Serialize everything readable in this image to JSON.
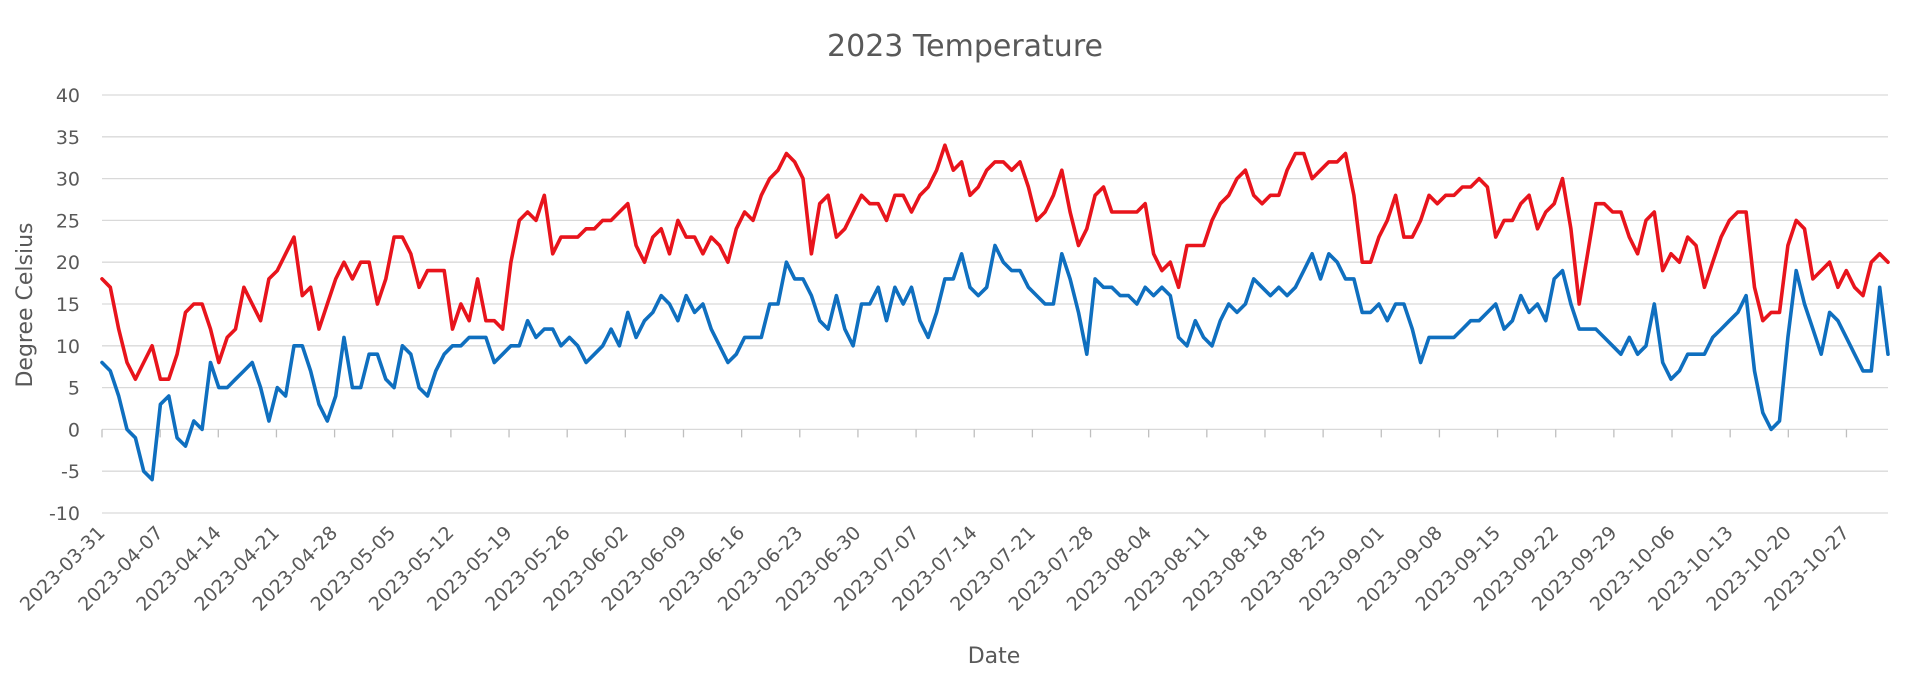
{
  "chart_data": {
    "type": "line",
    "title": "2023 Temperature",
    "xlabel": "Date",
    "ylabel": "Degree Celsius",
    "ylim": [
      -10,
      40
    ],
    "yticks": [
      -10,
      -5,
      0,
      5,
      10,
      15,
      20,
      25,
      30,
      35,
      40
    ],
    "x_start": "2023-03-31",
    "x_end": "2023-11-01",
    "xtick_labels": [
      "2023-03-31",
      "2023-04-07",
      "2023-04-14",
      "2023-04-21",
      "2023-04-28",
      "2023-05-05",
      "2023-05-12",
      "2023-05-19",
      "2023-05-26",
      "2023-06-02",
      "2023-06-09",
      "2023-06-16",
      "2023-06-23",
      "2023-06-30",
      "2023-07-07",
      "2023-07-14",
      "2023-07-21",
      "2023-07-28",
      "2023-08-04",
      "2023-08-11",
      "2023-08-18",
      "2023-08-25",
      "2023-09-01",
      "2023-09-08",
      "2023-09-15",
      "2023-09-22",
      "2023-09-29",
      "2023-10-06",
      "2023-10-13",
      "2023-10-20",
      "2023-10-27"
    ],
    "grid": true,
    "legend": "none",
    "series": [
      {
        "color": "#e8141c",
        "values": [
          18,
          17,
          12,
          8,
          6,
          8,
          10,
          6,
          6,
          9,
          14,
          15,
          15,
          12,
          8,
          11,
          12,
          17,
          15,
          13,
          18,
          19,
          21,
          23,
          16,
          17,
          12,
          15,
          18,
          20,
          18,
          20,
          20,
          15,
          18,
          23,
          23,
          21,
          17,
          19,
          19,
          19,
          12,
          15,
          13,
          18,
          13,
          13,
          12,
          20,
          25,
          26,
          25,
          28,
          21,
          23,
          23,
          23,
          24,
          24,
          25,
          25,
          26,
          27,
          22,
          20,
          23,
          24,
          21,
          25,
          23,
          23,
          21,
          23,
          22,
          20,
          24,
          26,
          25,
          28,
          30,
          31,
          33,
          32,
          30,
          21,
          27,
          28,
          23,
          24,
          26,
          28,
          27,
          27,
          25,
          28,
          28,
          26,
          28,
          29,
          31,
          34,
          31,
          32,
          28,
          29,
          31,
          32,
          32,
          31,
          32,
          29,
          25,
          26,
          28,
          31,
          26,
          22,
          24,
          28,
          29,
          26,
          26,
          26,
          26,
          27,
          21,
          19,
          20,
          17,
          22,
          22,
          22,
          25,
          27,
          28,
          30,
          31,
          28,
          27,
          28,
          28,
          31,
          33,
          33,
          30,
          31,
          32,
          32,
          33,
          28,
          20,
          20,
          23,
          25,
          28,
          23,
          23,
          25,
          28,
          27,
          28,
          28,
          29,
          29,
          30,
          29,
          23,
          25,
          25,
          27,
          28,
          24,
          26,
          27,
          30,
          24,
          15,
          21,
          27,
          27,
          26,
          26,
          23,
          21,
          25,
          26,
          19,
          21,
          20,
          23,
          22,
          17,
          20,
          23,
          25,
          26,
          26,
          17,
          13,
          14,
          14,
          22,
          25,
          24,
          18,
          19,
          20,
          17,
          19,
          17,
          16,
          20,
          21,
          20
        ]
      },
      {
        "color": "#0f6fbf",
        "values": [
          8,
          7,
          4,
          0,
          -1,
          -5,
          -6,
          3,
          4,
          -1,
          -2,
          1,
          0,
          8,
          5,
          5,
          6,
          7,
          8,
          5,
          1,
          5,
          4,
          10,
          10,
          7,
          3,
          1,
          4,
          11,
          5,
          5,
          9,
          9,
          6,
          5,
          10,
          9,
          5,
          4,
          7,
          9,
          10,
          10,
          11,
          11,
          11,
          8,
          9,
          10,
          10,
          13,
          11,
          12,
          12,
          10,
          11,
          10,
          8,
          9,
          10,
          12,
          10,
          14,
          11,
          13,
          14,
          16,
          15,
          13,
          16,
          14,
          15,
          12,
          10,
          8,
          9,
          11,
          11,
          11,
          15,
          15,
          20,
          18,
          18,
          16,
          13,
          12,
          16,
          12,
          10,
          15,
          15,
          17,
          13,
          17,
          15,
          17,
          13,
          11,
          14,
          18,
          18,
          21,
          17,
          16,
          17,
          22,
          20,
          19,
          19,
          17,
          16,
          15,
          15,
          21,
          18,
          14,
          9,
          18,
          17,
          17,
          16,
          16,
          15,
          17,
          16,
          17,
          16,
          11,
          10,
          13,
          11,
          10,
          13,
          15,
          14,
          15,
          18,
          17,
          16,
          17,
          16,
          17,
          19,
          21,
          18,
          21,
          20,
          18,
          18,
          14,
          14,
          15,
          13,
          15,
          15,
          12,
          8,
          11,
          11,
          11,
          11,
          12,
          13,
          13,
          14,
          15,
          12,
          13,
          16,
          14,
          15,
          13,
          18,
          19,
          15,
          12,
          12,
          12,
          11,
          10,
          9,
          11,
          9,
          10,
          15,
          8,
          6,
          7,
          9,
          9,
          9,
          11,
          12,
          13,
          14,
          16,
          7,
          2,
          0,
          1,
          11,
          19,
          15,
          12,
          9,
          14,
          13,
          11,
          9,
          7,
          7,
          17,
          9
        ]
      }
    ]
  }
}
